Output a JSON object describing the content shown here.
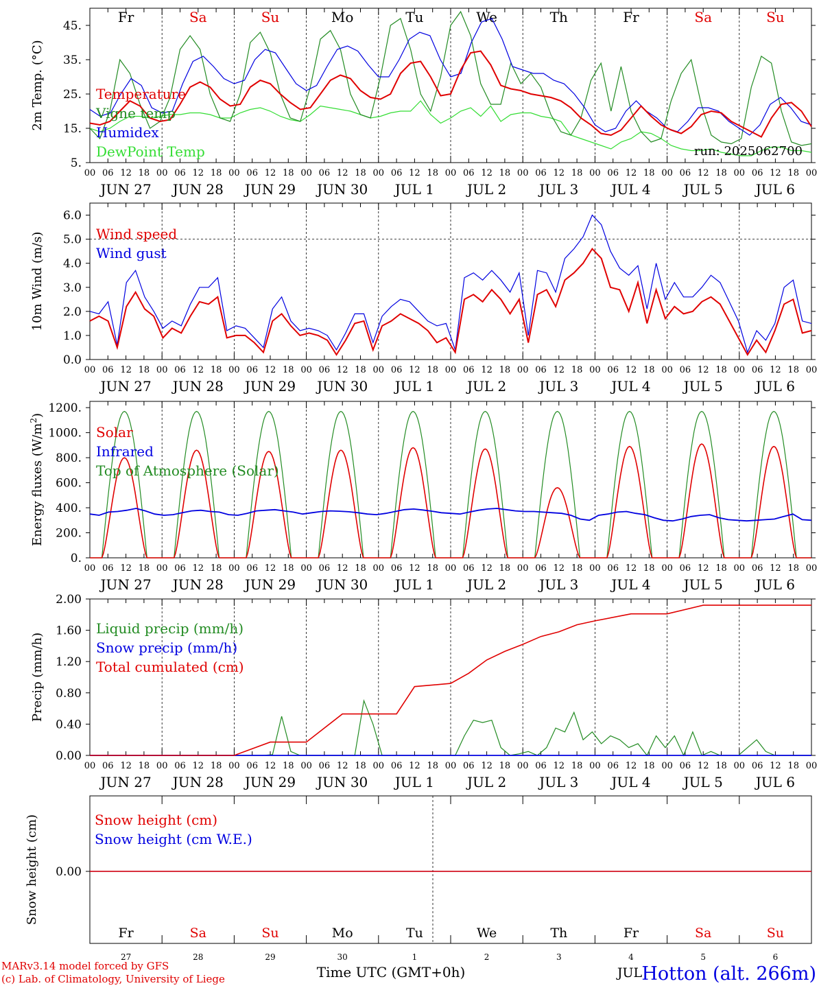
{
  "run_label": "run: 2025062700",
  "days": [
    "JUN 27",
    "JUN 28",
    "JUN 29",
    "JUN 30",
    "JUL  1",
    "JUL  2",
    "JUL  3",
    "JUL  4",
    "JUL  5",
    "JUL  6"
  ],
  "weekdays": [
    {
      "label": "Fr",
      "weekend": false
    },
    {
      "label": "Sa",
      "weekend": true
    },
    {
      "label": "Su",
      "weekend": true
    },
    {
      "label": "Mo",
      "weekend": false
    },
    {
      "label": "Tu",
      "weekend": false
    },
    {
      "label": "We",
      "weekend": false
    },
    {
      "label": "Th",
      "weekend": false
    },
    {
      "label": "Fr",
      "weekend": false
    },
    {
      "label": "Sa",
      "weekend": true
    },
    {
      "label": "Su",
      "weekend": true
    }
  ],
  "hour_ticks": [
    "00",
    "06",
    "12",
    "18"
  ],
  "colors": {
    "red": "#e00000",
    "green": "#228B22",
    "blue": "#0000e0",
    "lightgreen": "#33dd33",
    "weekend": "#e00000",
    "axis": "#000000"
  },
  "footer": {
    "credit1": "MARv3.14 model forced by GFS",
    "credit2": "(c) Lab. of Climatology, University of Liege",
    "xlabel": "Time UTC (GMT+0h)",
    "station": "Hotton (alt. 266m)",
    "month": "JUL",
    "day_numbers": [
      "27",
      "28",
      "29",
      "30",
      "1",
      "2",
      "3",
      "4",
      "5",
      "6"
    ]
  },
  "chart_data": [
    {
      "type": "line",
      "ylabel": "2m Temp. (°C)",
      "ylim": [
        5,
        50
      ],
      "yticks": [
        "5.",
        "15.",
        "25.",
        "35.",
        "45."
      ],
      "ytick_values": [
        5,
        15,
        25,
        35,
        45
      ],
      "grid": false,
      "series": [
        {
          "name": "Temperature",
          "color": "red",
          "values": [
            16.5,
            16,
            17,
            20,
            23,
            21.5,
            18,
            17,
            17.5,
            22,
            27,
            28.5,
            27,
            23.5,
            21.5,
            22,
            27,
            29,
            28,
            25,
            22.5,
            20.5,
            21,
            25,
            29,
            30.5,
            29.5,
            26,
            24,
            23.5,
            25,
            31,
            34,
            34.5,
            30,
            24.5,
            25,
            32,
            37,
            37.5,
            33.5,
            27.5,
            26.5,
            26,
            25,
            24.5,
            24,
            23,
            21,
            18,
            16,
            13.5,
            13,
            14.5,
            18,
            21.5,
            18.5,
            16,
            14.5,
            13.5,
            15.5,
            19,
            20,
            19.5,
            17,
            15.5,
            14,
            12.5,
            18,
            22,
            22.5,
            20,
            15.5
          ]
        },
        {
          "name": "Vigne temp",
          "color": "green",
          "values": [
            15,
            12,
            20,
            35,
            31,
            22,
            15,
            17,
            24,
            38,
            42,
            38,
            25,
            18,
            17,
            25,
            40,
            43,
            37,
            25,
            18,
            17,
            27,
            41,
            43.5,
            38,
            25,
            19,
            18,
            30,
            45,
            47,
            38,
            25,
            20,
            30,
            45,
            49,
            42,
            28,
            22,
            22,
            34,
            28,
            31,
            27,
            19,
            14,
            13,
            18,
            29,
            34,
            20,
            33,
            20,
            14,
            11,
            12,
            23,
            31,
            35,
            22,
            13,
            11,
            10.5,
            12,
            27,
            36,
            34,
            20,
            11,
            10,
            10.5
          ]
        },
        {
          "name": "Humidex",
          "color": "blue",
          "values": [
            20.5,
            18.5,
            19.5,
            25,
            29.5,
            27.5,
            21,
            19.5,
            20,
            28,
            34.5,
            36,
            33,
            29.5,
            28,
            29,
            35,
            38,
            37,
            32.5,
            28,
            26,
            27.5,
            33,
            38,
            39,
            37.5,
            33.5,
            30,
            30,
            35,
            41,
            43,
            42,
            35,
            30,
            31,
            40,
            46,
            47,
            41,
            33,
            32,
            31,
            31,
            29,
            28,
            25,
            21,
            16,
            14,
            15,
            20,
            23,
            20,
            18,
            15,
            14,
            17,
            21,
            21,
            20,
            17,
            15,
            13,
            16,
            22,
            24,
            21,
            17,
            16
          ]
        },
        {
          "name": "DewPoint Temp",
          "color": "lightgreen",
          "values": [
            15,
            14,
            15,
            17,
            18.5,
            18.5,
            18,
            18.5,
            19,
            19,
            19.5,
            19.5,
            19,
            18,
            18,
            19.5,
            20.5,
            21,
            20,
            18.5,
            17.5,
            17,
            19,
            21.5,
            21,
            20.5,
            20,
            19,
            18,
            18.5,
            19.5,
            20,
            20,
            23,
            19,
            16.5,
            18,
            20,
            21,
            18.5,
            21.5,
            17,
            19,
            19.5,
            19.5,
            18.5,
            18,
            17,
            13,
            12,
            11,
            10,
            9,
            11,
            12,
            14,
            13.5,
            12,
            10,
            9,
            8.5,
            8.5,
            9,
            8,
            7.5,
            7,
            7,
            8.5,
            9.5,
            9.5,
            8.5,
            8.5,
            8
          ]
        }
      ]
    },
    {
      "type": "line",
      "ylabel": "10m Wind (m/s)",
      "ylim": [
        0,
        6.5
      ],
      "yticks": [
        "0.0",
        "1.0",
        "2.0",
        "3.0",
        "4.0",
        "5.0",
        "6.0"
      ],
      "ytick_values": [
        0,
        1,
        2,
        3,
        4,
        5,
        6
      ],
      "ref_line": 5,
      "series": [
        {
          "name": "Wind speed",
          "color": "red",
          "values": [
            1.6,
            1.8,
            1.6,
            0.5,
            2.2,
            2.8,
            2.1,
            1.8,
            0.9,
            1.3,
            1.1,
            1.8,
            2.4,
            2.3,
            2.6,
            0.9,
            1.0,
            1.0,
            0.7,
            0.3,
            1.6,
            1.9,
            1.4,
            1.0,
            1.1,
            1.0,
            0.8,
            0.2,
            0.8,
            1.5,
            1.6,
            0.4,
            1.4,
            1.6,
            1.9,
            1.7,
            1.5,
            1.2,
            0.7,
            0.9,
            0.3,
            2.5,
            2.7,
            2.4,
            2.9,
            2.5,
            1.9,
            2.5,
            0.7,
            2.7,
            2.9,
            2.2,
            3.3,
            3.6,
            4.0,
            4.6,
            4.2,
            3.0,
            2.9,
            2.0,
            3.2,
            1.5,
            2.9,
            1.7,
            2.2,
            1.9,
            2.0,
            2.4,
            2.6,
            2.3,
            1.6,
            0.9,
            0.2,
            0.8,
            0.3,
            1.2,
            2.3,
            2.5,
            1.1,
            1.2
          ]
        },
        {
          "name": "Wind gust",
          "color": "blue",
          "values": [
            2.0,
            1.9,
            2.4,
            0.6,
            3.2,
            3.7,
            2.6,
            2.0,
            1.3,
            1.6,
            1.4,
            2.3,
            3.0,
            3.0,
            3.4,
            1.2,
            1.4,
            1.3,
            0.9,
            0.5,
            2.1,
            2.6,
            1.6,
            1.2,
            1.3,
            1.2,
            1.0,
            0.4,
            1.1,
            1.9,
            1.9,
            0.7,
            1.8,
            2.2,
            2.5,
            2.4,
            2.0,
            1.6,
            1.4,
            1.5,
            0.4,
            3.4,
            3.6,
            3.3,
            3.7,
            3.3,
            2.8,
            3.6,
            1.0,
            3.7,
            3.6,
            2.8,
            4.2,
            4.6,
            5.1,
            6.0,
            5.6,
            4.5,
            3.8,
            3.5,
            3.9,
            2.1,
            4.0,
            2.5,
            3.2,
            2.6,
            2.6,
            3.0,
            3.5,
            3.2,
            2.4,
            1.6,
            0.3,
            1.2,
            0.8,
            1.5,
            3.0,
            3.3,
            1.6,
            1.5
          ]
        }
      ]
    },
    {
      "type": "line",
      "ylabel": "Energy fluxes (W/m²)",
      "ylim": [
        0,
        1250
      ],
      "yticks": [
        "0.",
        "200.",
        "400.",
        "600.",
        "800.",
        "1000.",
        "1200."
      ],
      "ytick_values": [
        0,
        200,
        400,
        600,
        800,
        1000,
        1200
      ],
      "series": [
        {
          "name": "Solar",
          "color": "red",
          "peaks": [
            800,
            860,
            850,
            860,
            880,
            870,
            560,
            890,
            910,
            890
          ]
        },
        {
          "name": "Infrared",
          "color": "blue",
          "values": [
            350,
            340,
            365,
            370,
            380,
            395,
            375,
            350,
            340,
            345,
            360,
            375,
            380,
            370,
            365,
            345,
            340,
            355,
            375,
            380,
            385,
            375,
            365,
            350,
            360,
            370,
            375,
            372,
            368,
            360,
            350,
            345,
            355,
            370,
            385,
            390,
            382,
            372,
            360,
            355,
            350,
            365,
            380,
            390,
            395,
            385,
            375,
            370,
            370,
            365,
            360,
            355,
            340,
            310,
            300,
            340,
            350,
            365,
            370,
            355,
            345,
            320,
            300,
            295,
            310,
            330,
            340,
            345,
            320,
            305,
            300,
            295,
            300,
            305,
            310,
            330,
            350,
            305,
            300
          ]
        },
        {
          "name": "Top of Atmosphere (Solar)",
          "color": "green",
          "peaks": [
            1170,
            1170,
            1170,
            1170,
            1170,
            1170,
            1170,
            1170,
            1170,
            1170
          ]
        }
      ]
    },
    {
      "type": "line",
      "ylabel": "Precip (mm/h)",
      "ylim": [
        0,
        2.0
      ],
      "yticks": [
        "0.00",
        "0.40",
        "0.80",
        "1.20",
        "1.60",
        "2.00"
      ],
      "ytick_values": [
        0,
        0.4,
        0.8,
        1.2,
        1.6,
        2.0
      ],
      "series": [
        {
          "name": "Liquid precip (mm/h)",
          "color": "green",
          "values": [
            0,
            0,
            0,
            0,
            0,
            0,
            0,
            0,
            0,
            0,
            0,
            0,
            0,
            0,
            0,
            0,
            0,
            0,
            0,
            0,
            0.01,
            0.5,
            0.05,
            0,
            0,
            0,
            0,
            0,
            0,
            0,
            0.7,
            0.4,
            0,
            0,
            0,
            0,
            0,
            0,
            0,
            0,
            0,
            0.25,
            0.45,
            0.42,
            0.45,
            0.1,
            0,
            0.02,
            0.05,
            0,
            0.1,
            0.35,
            0.3,
            0.55,
            0.2,
            0.3,
            0.15,
            0.25,
            0.2,
            0.1,
            0.15,
            0,
            0.25,
            0.1,
            0.25,
            0,
            0.3,
            0,
            0.05,
            0,
            0,
            0,
            0.1,
            0.2,
            0.05,
            0,
            0,
            0,
            0,
            0
          ]
        },
        {
          "name": "Snow precip (mm/h)",
          "color": "blue",
          "values": [
            0,
            0
          ]
        },
        {
          "name": "Total cumulated (cm)",
          "color": "red",
          "x": [
            0,
            24,
            48,
            60,
            66,
            72,
            84,
            96,
            102,
            108,
            120,
            126,
            132,
            138,
            144,
            150,
            156,
            162,
            168,
            180,
            192,
            204,
            210,
            216,
            228,
            240
          ],
          "values": [
            0,
            0,
            0,
            0.17,
            0.17,
            0.17,
            0.53,
            0.53,
            0.53,
            0.88,
            0.92,
            1.05,
            1.22,
            1.33,
            1.42,
            1.52,
            1.58,
            1.67,
            1.72,
            1.81,
            1.81,
            1.92,
            1.92,
            1.92,
            1.92,
            1.92
          ]
        }
      ]
    },
    {
      "type": "line",
      "ylabel": "Snow height (cm)",
      "yticks": [
        "0.00"
      ],
      "ytick_values": [
        0
      ],
      "series": [
        {
          "name": "Snow height (cm)",
          "color": "red",
          "values": [
            0,
            0
          ]
        },
        {
          "name": "Snow height (cm W.E.)",
          "color": "blue",
          "values": [
            0,
            0
          ]
        }
      ]
    }
  ]
}
